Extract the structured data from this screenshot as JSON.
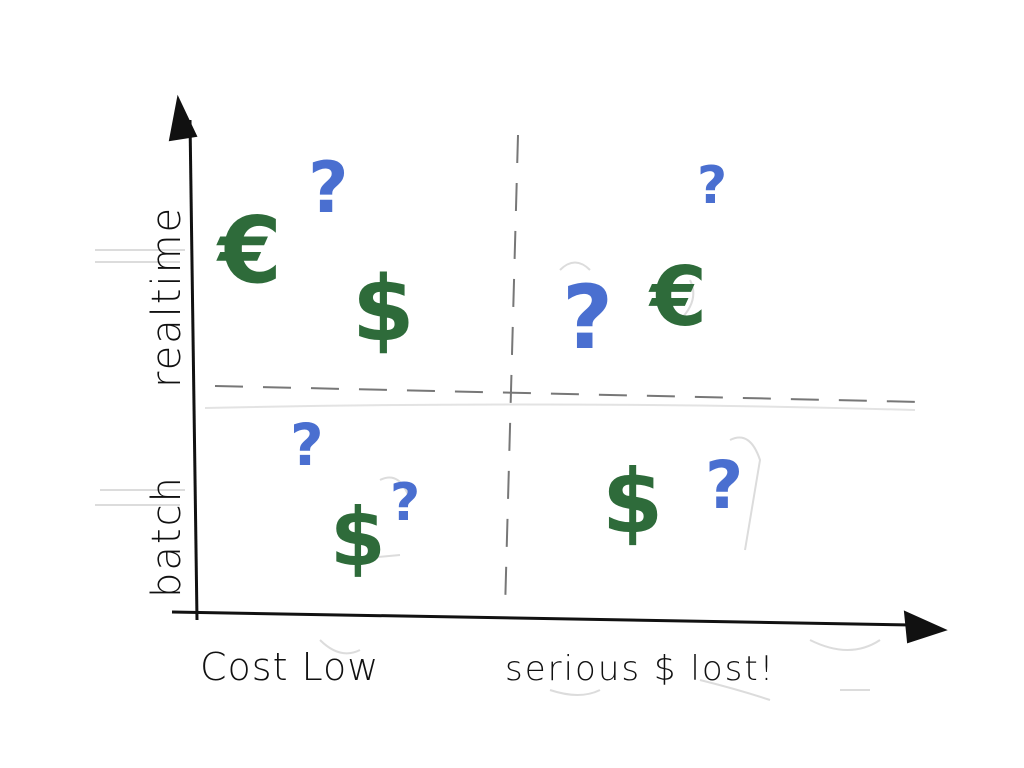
{
  "colors": {
    "ink": "#111111",
    "green": "#2e6b3a",
    "blue": "#4a6fd0",
    "ghost": "#d9d9d9",
    "dash": "#777777"
  },
  "axes": {
    "y_top_label": "realtime",
    "y_bottom_label": "batch",
    "x_left_label": "Cost Low",
    "x_right_label": "serious $ lost!"
  },
  "quadrants": {
    "top_left": {
      "euro": "€",
      "dollar": "$",
      "question": "?"
    },
    "top_right": {
      "euro": "€",
      "question_small": "?",
      "question_large": "?"
    },
    "bottom_left": {
      "dollar": "$",
      "question_a": "?",
      "question_b": "?"
    },
    "bottom_right": {
      "dollar": "$",
      "question": "?"
    }
  }
}
